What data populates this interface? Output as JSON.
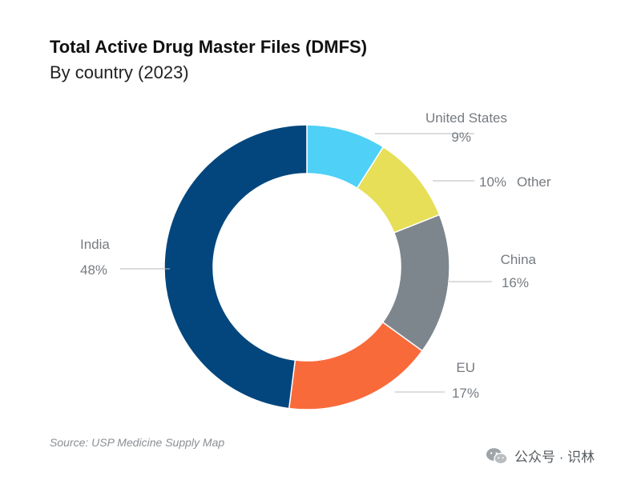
{
  "chart_data": {
    "type": "pie",
    "title": "Total Active Drug Master Files (DMFS)",
    "subtitle": "By country (2023)",
    "source": "Source: USP Medicine Supply Map",
    "slices": [
      {
        "name": "United States",
        "value": 9,
        "value_label": "9%",
        "color": "#4fd0f7"
      },
      {
        "name": "Other",
        "value": 10,
        "value_label": "10%",
        "color": "#e6df57"
      },
      {
        "name": "China",
        "value": 16,
        "value_label": "16%",
        "color": "#7d868c"
      },
      {
        "name": "EU",
        "value": 17,
        "value_label": "17%",
        "color": "#f96a3b"
      },
      {
        "name": "India",
        "value": 48,
        "value_label": "48%",
        "color": "#02467d"
      }
    ]
  },
  "watermark": {
    "text": "公众号 · 识林",
    "icon": "wechat-icon"
  }
}
